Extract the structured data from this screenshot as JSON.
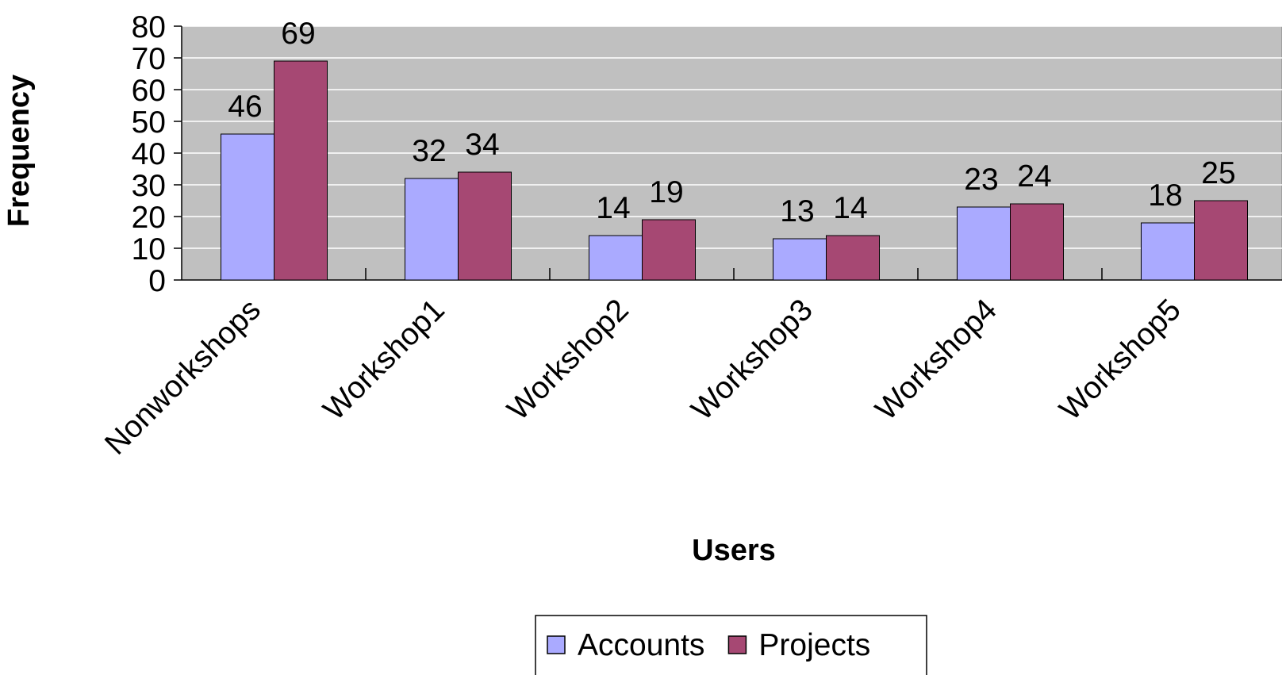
{
  "chart_data": {
    "type": "bar",
    "x_label": "Users",
    "y_label": "Frequency",
    "categories": [
      "Nonworkshops",
      "Workshop1",
      "Workshop2",
      "Workshop3",
      "Workshop4",
      "Workshop5"
    ],
    "series": [
      {
        "name": "Accounts",
        "color": "#aaaaff",
        "values": [
          46,
          32,
          14,
          13,
          23,
          18
        ]
      },
      {
        "name": "Projects",
        "color": "#a64873",
        "values": [
          69,
          34,
          19,
          14,
          24,
          25
        ]
      }
    ],
    "ylim": [
      0,
      80
    ],
    "yticks": [
      0,
      10,
      20,
      30,
      40,
      50,
      60,
      70,
      80
    ],
    "grid": true,
    "legend": "bottom"
  }
}
